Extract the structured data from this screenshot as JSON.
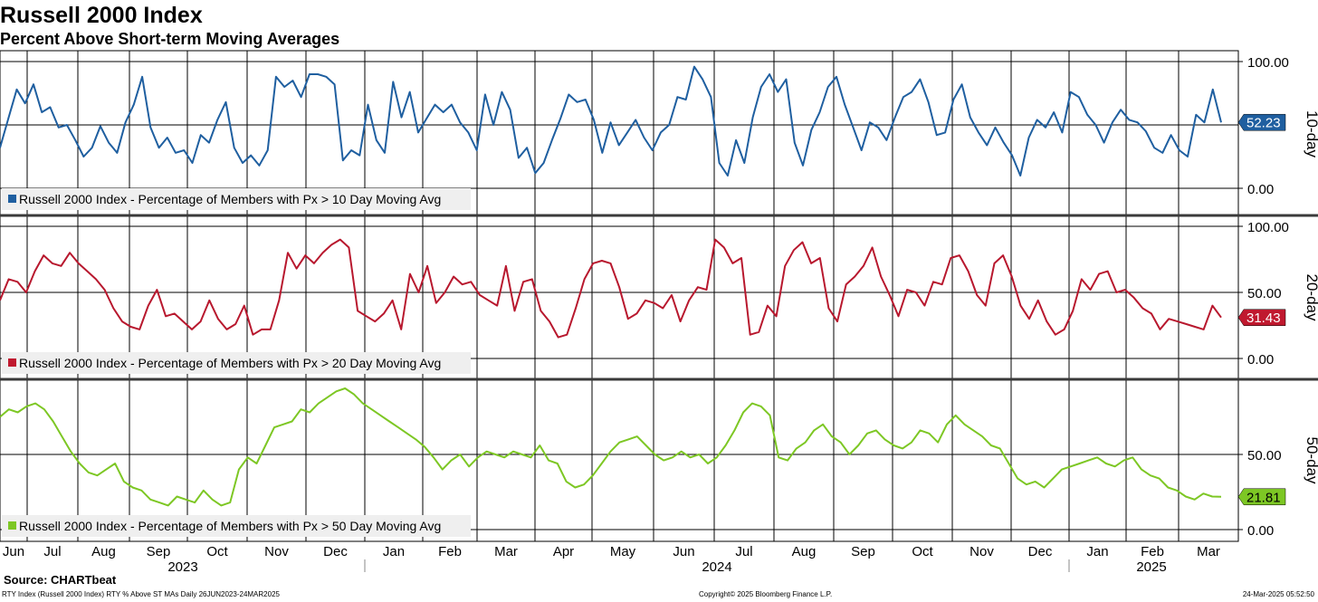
{
  "title": "Russell 2000 Index",
  "subtitle": "Percent Above Short-term Moving Averages",
  "source": "Source: CHARTbeat",
  "footer": {
    "left": "RTY Index (Russell 2000 Index) RTY % Above ST MAs  Daily 26JUN2023-24MAR2025",
    "center": "Copyright© 2025 Bloomberg Finance L.P.",
    "right": "24-Mar-2025 05:52:50"
  },
  "chart_data": {
    "type": "line",
    "x_axis": {
      "months": [
        "Jun",
        "Jul",
        "Aug",
        "Sep",
        "Oct",
        "Nov",
        "Dec",
        "Jan",
        "Feb",
        "Mar",
        "Apr",
        "May",
        "Jun",
        "Jul",
        "Aug",
        "Sep",
        "Oct",
        "Nov",
        "Dec",
        "Jan",
        "Feb",
        "Mar"
      ],
      "years": [
        "2023",
        "2024",
        "2025"
      ],
      "range": [
        "2023-06-26",
        "2025-03-24"
      ]
    },
    "panels": [
      {
        "side_label": "10-day",
        "series_name": "Russell 2000 Index - Percentage of Members with Px > 10 Day Moving Avg",
        "color": "#1f5fa0",
        "tag_color": "#1f5fa0",
        "last_value": "52.23",
        "ylim": [
          0,
          100
        ],
        "yticks": [
          "100.00",
          "0.00"
        ],
        "grid_y": [
          100,
          50,
          0
        ],
        "values": [
          32,
          55,
          78,
          67,
          82,
          60,
          64,
          48,
          50,
          38,
          25,
          32,
          49,
          36,
          28,
          52,
          66,
          88,
          48,
          32,
          40,
          28,
          30,
          20,
          42,
          36,
          54,
          68,
          32,
          20,
          26,
          18,
          30,
          88,
          80,
          85,
          72,
          90,
          90,
          88,
          82,
          22,
          30,
          26,
          66,
          38,
          28,
          84,
          56,
          76,
          44,
          55,
          66,
          60,
          66,
          52,
          44,
          30,
          74,
          50,
          76,
          62,
          24,
          32,
          12,
          20,
          38,
          55,
          74,
          68,
          70,
          54,
          28,
          52,
          34,
          44,
          54,
          40,
          30,
          44,
          50,
          72,
          70,
          96,
          86,
          72,
          20,
          10,
          38,
          20,
          56,
          80,
          90,
          76,
          86,
          36,
          18,
          46,
          60,
          80,
          88,
          66,
          48,
          30,
          52,
          48,
          38,
          56,
          72,
          76,
          86,
          68,
          42,
          44,
          70,
          82,
          56,
          44,
          34,
          48,
          36,
          26,
          10,
          40,
          54,
          48,
          60,
          44,
          76,
          72,
          58,
          50,
          36,
          52,
          62,
          54,
          52,
          45,
          32,
          28,
          42,
          30,
          25,
          58,
          52,
          78,
          52
        ],
        "smooth": 1
      },
      {
        "side_label": "20-day",
        "series_name": "Russell 2000 Index - Percentage of Members with Px > 20 Day Moving Avg",
        "color": "#b8182e",
        "tag_color": "#c0192f",
        "last_value": "31.43",
        "ylim": [
          0,
          100
        ],
        "yticks": [
          "100.00",
          "50.00",
          "0.00"
        ],
        "grid_y": [
          100,
          50,
          0
        ],
        "values": [
          44,
          60,
          58,
          50,
          66,
          78,
          72,
          70,
          80,
          72,
          66,
          60,
          52,
          38,
          28,
          24,
          22,
          40,
          52,
          32,
          34,
          28,
          22,
          28,
          44,
          30,
          22,
          26,
          40,
          18,
          22,
          22,
          44,
          80,
          68,
          78,
          72,
          80,
          86,
          90,
          84,
          36,
          32,
          28,
          34,
          44,
          22,
          64,
          50,
          70,
          42,
          50,
          62,
          56,
          58,
          48,
          44,
          40,
          70,
          36,
          58,
          60,
          36,
          28,
          16,
          18,
          38,
          60,
          72,
          74,
          72,
          54,
          30,
          34,
          44,
          42,
          38,
          48,
          28,
          44,
          54,
          52,
          90,
          84,
          72,
          76,
          18,
          20,
          40,
          32,
          70,
          82,
          88,
          72,
          76,
          38,
          28,
          56,
          62,
          70,
          84,
          62,
          48,
          32,
          52,
          50,
          40,
          58,
          56,
          76,
          78,
          66,
          48,
          40,
          72,
          78,
          62,
          40,
          30,
          44,
          28,
          18,
          22,
          36,
          60,
          52,
          64,
          66,
          50,
          52,
          46,
          38,
          34,
          22,
          30,
          28,
          26,
          24,
          22,
          40,
          31
        ],
        "smooth": 1
      },
      {
        "side_label": "50-day",
        "series_name": "Russell 2000 Index - Percentage of Members with Px > 50 Day Moving Avg",
        "color": "#7dc724",
        "tag_color": "#7dc724",
        "last_value": "21.81",
        "ylim": [
          0,
          100
        ],
        "yticks": [
          "50.00",
          "0.00"
        ],
        "grid_y": [
          50,
          0
        ],
        "values": [
          75,
          80,
          78,
          82,
          84,
          80,
          72,
          62,
          52,
          44,
          38,
          36,
          40,
          44,
          32,
          28,
          26,
          20,
          18,
          16,
          22,
          20,
          18,
          26,
          20,
          16,
          18,
          40,
          48,
          44,
          56,
          68,
          70,
          72,
          80,
          78,
          84,
          88,
          92,
          94,
          90,
          84,
          80,
          76,
          72,
          68,
          64,
          60,
          55,
          48,
          40,
          46,
          50,
          42,
          48,
          52,
          50,
          48,
          52,
          50,
          48,
          56,
          46,
          44,
          32,
          28,
          30,
          36,
          44,
          52,
          58,
          60,
          62,
          56,
          50,
          46,
          48,
          52,
          48,
          50,
          44,
          48,
          56,
          66,
          78,
          84,
          82,
          76,
          48,
          46,
          54,
          58,
          66,
          70,
          62,
          58,
          50,
          56,
          64,
          66,
          60,
          56,
          54,
          58,
          66,
          64,
          58,
          70,
          76,
          70,
          66,
          62,
          56,
          54,
          44,
          34,
          30,
          32,
          28,
          34,
          40,
          42,
          44,
          46,
          48,
          44,
          42,
          46,
          48,
          40,
          36,
          34,
          28,
          26,
          22,
          20,
          24,
          22,
          21.81
        ],
        "smooth": 1
      }
    ],
    "legend_position": "bottom-left"
  }
}
